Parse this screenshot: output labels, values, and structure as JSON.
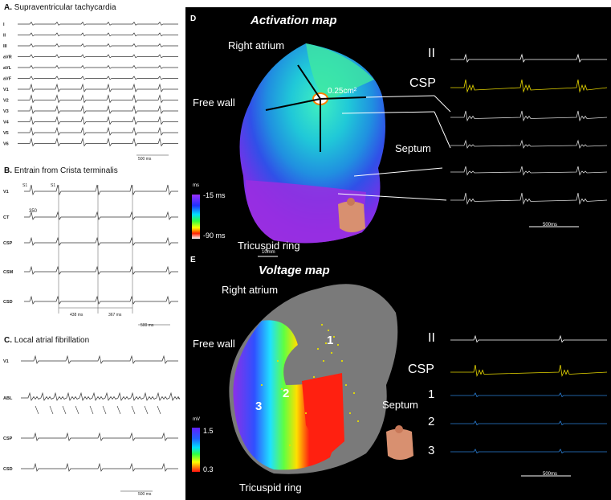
{
  "panelA": {
    "letter": "A.",
    "title": "Supraventricular tachycardia",
    "leads": [
      "I",
      "II",
      "III",
      "aVR",
      "aVL",
      "aVF",
      "V1",
      "V2",
      "V3",
      "V4",
      "V5",
      "V6"
    ],
    "scale": "500 ms"
  },
  "panelB": {
    "letter": "B.",
    "title": "Entrain from Crista terminalis",
    "leads": [
      "V1",
      "CT",
      "CSP",
      "CSM",
      "CSD"
    ],
    "s1a": "S1",
    "s1b": "S1",
    "interval": "350",
    "m1": "438 ms",
    "m2": "367 ms",
    "scale": "500 ms"
  },
  "panelC": {
    "letter": "C.",
    "title": "Local atrial fibrillation",
    "leads": [
      "V1",
      "ABL",
      "CSP",
      "CSD"
    ],
    "scale": "500 ms"
  },
  "panelD": {
    "letter": "D",
    "title": "Activation map",
    "right_atrium": "Right atrium",
    "free_wall": "Free wall",
    "septum": "Septum",
    "tricuspid": "Tricuspid ring",
    "area": "0.25cm²",
    "scale_unit": "ms",
    "scale_top": "-15 ms",
    "scale_bottom": "-90 ms",
    "scalebar": "10mm",
    "ecg_labels": [
      "II",
      "CSP"
    ],
    "time_scale": "500ms"
  },
  "panelE": {
    "letter": "E",
    "title": "Voltage map",
    "right_atrium": "Right atrium",
    "free_wall": "Free wall",
    "septum": "Septum",
    "tricuspid": "Tricuspid ring",
    "scale_unit": "mV",
    "scale_top": "1.5",
    "scale_bottom": "0.3",
    "points": [
      "1",
      "2",
      "3"
    ],
    "ecg_labels": [
      "II",
      "CSP",
      "1",
      "2",
      "3"
    ],
    "time_scale": "500ms"
  },
  "colors": {
    "cyan": "#35e0d0",
    "yellow": "#e8d800",
    "blue_trace": "#2a7fd6",
    "purple": "#8a2be2"
  }
}
